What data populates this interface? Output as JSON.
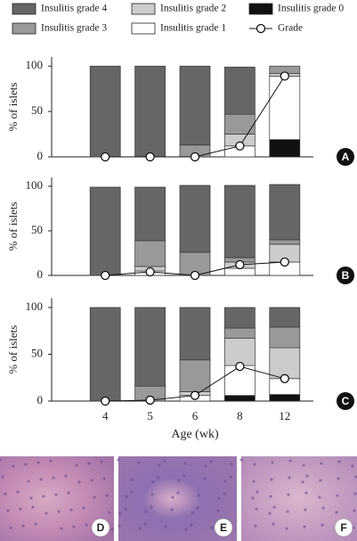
{
  "chart_data": [
    {
      "type": "bar",
      "stacked": true,
      "label": "A",
      "ylabel": "% of islets",
      "ylim": [
        0,
        110
      ],
      "yticks": [
        0,
        50,
        100
      ],
      "series": [
        {
          "name": "Insulitis grade 0",
          "color": "#111111",
          "values": [
            0,
            0,
            0,
            0,
            19
          ]
        },
        {
          "name": "Insulitis grade 1",
          "color": "#ffffff",
          "values": [
            0,
            0,
            0,
            12,
            70
          ]
        },
        {
          "name": "Insulitis grade 2",
          "color": "#cccccc",
          "values": [
            0,
            0,
            0,
            13,
            3
          ]
        },
        {
          "name": "Insulitis grade 3",
          "color": "#999999",
          "values": [
            0,
            0,
            13,
            22,
            8
          ]
        },
        {
          "name": "Insulitis grade 4",
          "color": "#666666",
          "values": [
            100,
            100,
            87,
            52,
            0
          ]
        },
        {
          "name": "Grade",
          "type": "line",
          "color": "#111111",
          "values": [
            0,
            0,
            0,
            12,
            89
          ]
        }
      ]
    },
    {
      "type": "bar",
      "stacked": true,
      "label": "B",
      "ylabel": "% of islets",
      "ylim": [
        0,
        110
      ],
      "yticks": [
        0,
        50,
        100
      ],
      "series": [
        {
          "color": "#111111",
          "values": [
            0,
            0,
            0,
            0,
            0
          ]
        },
        {
          "color": "#ffffff",
          "values": [
            0,
            5,
            0,
            8,
            15
          ]
        },
        {
          "color": "#cccccc",
          "values": [
            0,
            5,
            0,
            7,
            20
          ]
        },
        {
          "color": "#999999",
          "values": [
            0,
            29,
            26,
            5,
            5
          ]
        },
        {
          "color": "#666666",
          "values": [
            99,
            60,
            75,
            81,
            62
          ]
        },
        {
          "type": "line",
          "color": "#111111",
          "values": [
            0,
            4,
            0,
            12,
            15
          ]
        }
      ]
    },
    {
      "type": "bar",
      "stacked": true,
      "label": "C",
      "ylabel": "% of islets",
      "xlabel": "Age (wk)",
      "categories": [
        "4",
        "5",
        "6",
        "8",
        "12"
      ],
      "ylim": [
        0,
        110
      ],
      "yticks": [
        0,
        50,
        100
      ],
      "series": [
        {
          "color": "#111111",
          "values": [
            0,
            0,
            0,
            6,
            7
          ]
        },
        {
          "color": "#ffffff",
          "values": [
            0,
            0,
            6,
            32,
            17
          ]
        },
        {
          "color": "#cccccc",
          "values": [
            0,
            0,
            4,
            29,
            33
          ]
        },
        {
          "color": "#999999",
          "values": [
            0,
            16,
            34,
            11,
            22
          ]
        },
        {
          "color": "#666666",
          "values": [
            100,
            84,
            56,
            22,
            21
          ]
        },
        {
          "type": "line",
          "color": "#111111",
          "values": [
            0,
            1,
            6,
            37,
            24
          ]
        }
      ]
    }
  ],
  "images": [
    {
      "label": "D"
    },
    {
      "label": "E"
    },
    {
      "label": "F"
    }
  ]
}
